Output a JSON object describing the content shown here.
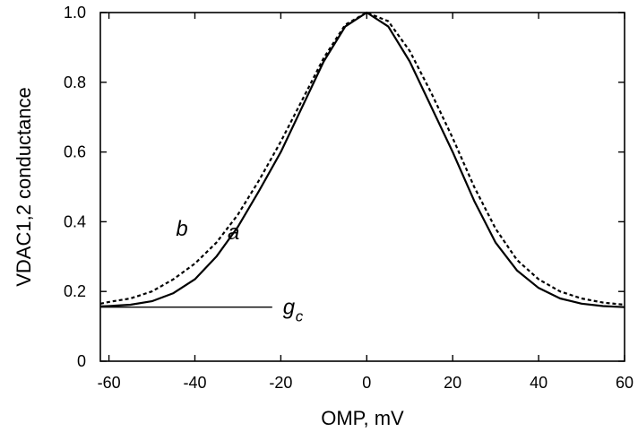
{
  "chart_data": {
    "type": "line",
    "xlabel": "OMP, mV",
    "ylabel": "VDAC1,2 conductance",
    "xlim": [
      -62,
      60
    ],
    "ylim": [
      0,
      1.0
    ],
    "xticks": [
      -60,
      -40,
      -20,
      0,
      20,
      40,
      60
    ],
    "xtick_labels": [
      "-60",
      "-40",
      "-20",
      "0",
      "20",
      "40",
      "60"
    ],
    "yticks": [
      0,
      0.2,
      0.4,
      0.6,
      0.8,
      1.0
    ],
    "ytick_labels": [
      "0",
      "0.2",
      "0.4",
      "0.6",
      "0.8",
      "1.0"
    ],
    "grid": false,
    "series": [
      {
        "name": "a",
        "style": "solid",
        "x": [
          -62,
          -60,
          -55,
          -50,
          -45,
          -40,
          -35,
          -30,
          -25,
          -20,
          -15,
          -10,
          -5,
          0,
          5,
          10,
          15,
          20,
          25,
          30,
          35,
          40,
          45,
          50,
          55,
          60
        ],
        "y": [
          0.157,
          0.158,
          0.162,
          0.172,
          0.195,
          0.235,
          0.3,
          0.385,
          0.49,
          0.6,
          0.73,
          0.86,
          0.96,
          1.0,
          0.96,
          0.86,
          0.73,
          0.6,
          0.46,
          0.34,
          0.26,
          0.21,
          0.18,
          0.165,
          0.158,
          0.155
        ]
      },
      {
        "name": "b",
        "style": "dotted",
        "x": [
          -62,
          -60,
          -55,
          -50,
          -45,
          -40,
          -35,
          -30,
          -25,
          -20,
          -15,
          -10,
          -5,
          0,
          5,
          10,
          15,
          20,
          25,
          30,
          35,
          40,
          45,
          50,
          55,
          60
        ],
        "y": [
          0.165,
          0.17,
          0.18,
          0.2,
          0.235,
          0.28,
          0.34,
          0.42,
          0.52,
          0.63,
          0.75,
          0.87,
          0.965,
          1.0,
          0.975,
          0.89,
          0.77,
          0.64,
          0.5,
          0.38,
          0.29,
          0.235,
          0.2,
          0.18,
          0.168,
          0.162
        ]
      }
    ],
    "reference_line": {
      "label": "g",
      "subscript": "c",
      "y": 0.155,
      "x": [
        -62,
        -22
      ]
    },
    "annotations": [
      {
        "text": "b",
        "x": -43,
        "y": 0.36
      },
      {
        "text": "a",
        "x": -31,
        "y": 0.35
      }
    ]
  }
}
